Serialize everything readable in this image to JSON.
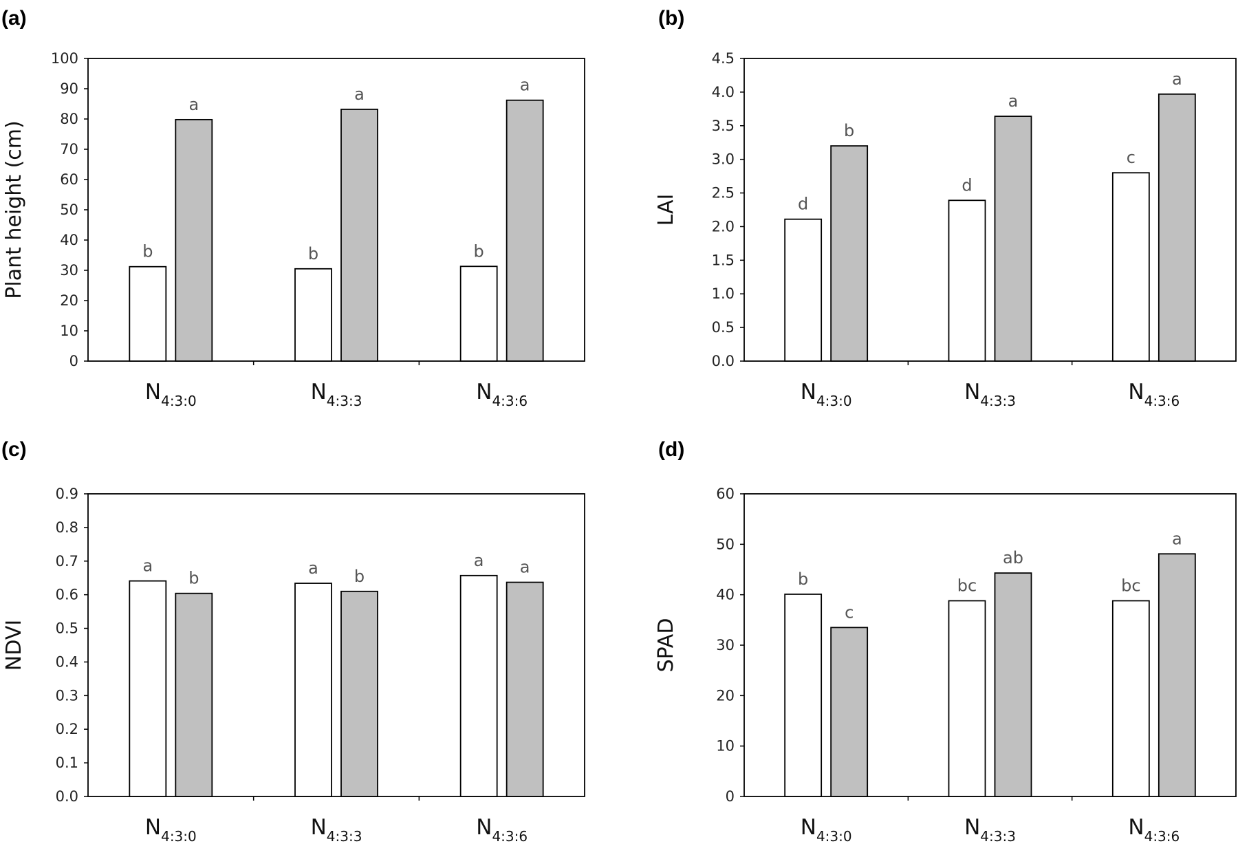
{
  "chart_data": [
    {
      "type": "bar",
      "panel": "(a)",
      "ylabel": "Plant height (cm)",
      "ylim": [
        0,
        100
      ],
      "yticks": [
        "0",
        "10",
        "20",
        "30",
        "40",
        "50",
        "60",
        "70",
        "80",
        "90",
        "100"
      ],
      "categories": [
        {
          "main": "N",
          "sub": "4:3:0"
        },
        {
          "main": "N",
          "sub": "4:3:3"
        },
        {
          "main": "N",
          "sub": "4:3:6"
        }
      ],
      "series": [
        {
          "color": "#ffffff",
          "values": [
            31.2,
            30.5,
            31.3
          ],
          "labels": [
            "b",
            "b",
            "b"
          ]
        },
        {
          "color": "#c0c0c0",
          "values": [
            79.8,
            83.2,
            86.2
          ],
          "labels": [
            "a",
            "a",
            "a"
          ]
        }
      ]
    },
    {
      "type": "bar",
      "panel": "(b)",
      "ylabel": "LAI",
      "ylim": [
        0,
        4.5
      ],
      "yticks": [
        "0.0",
        "0.5",
        "1.0",
        "1.5",
        "2.0",
        "2.5",
        "3.0",
        "3.5",
        "4.0",
        "4.5"
      ],
      "categories": [
        {
          "main": "N",
          "sub": "4:3:0"
        },
        {
          "main": "N",
          "sub": "4:3:3"
        },
        {
          "main": "N",
          "sub": "4:3:6"
        }
      ],
      "series": [
        {
          "color": "#ffffff",
          "values": [
            2.11,
            2.39,
            2.8
          ],
          "labels": [
            "d",
            "d",
            "c"
          ]
        },
        {
          "color": "#c0c0c0",
          "values": [
            3.2,
            3.64,
            3.97
          ],
          "labels": [
            "b",
            "a",
            "a"
          ]
        }
      ]
    },
    {
      "type": "bar",
      "panel": "(c)",
      "ylabel": "NDVI",
      "ylim": [
        0,
        0.9
      ],
      "yticks": [
        "0.0",
        "0.1",
        "0.2",
        "0.3",
        "0.4",
        "0.5",
        "0.6",
        "0.7",
        "0.8",
        "0.9"
      ],
      "categories": [
        {
          "main": "N",
          "sub": "4:3:0"
        },
        {
          "main": "N",
          "sub": "4:3:3"
        },
        {
          "main": "N",
          "sub": "4:3:6"
        }
      ],
      "series": [
        {
          "color": "#ffffff",
          "values": [
            0.641,
            0.634,
            0.657
          ],
          "labels": [
            "a",
            "a",
            "a"
          ]
        },
        {
          "color": "#c0c0c0",
          "values": [
            0.604,
            0.61,
            0.637
          ],
          "labels": [
            "b",
            "b",
            "a"
          ]
        }
      ]
    },
    {
      "type": "bar",
      "panel": "(d)",
      "ylabel": "SPAD",
      "ylim": [
        0,
        60
      ],
      "yticks": [
        "0",
        "10",
        "20",
        "30",
        "40",
        "50",
        "60"
      ],
      "categories": [
        {
          "main": "N",
          "sub": "4:3:0"
        },
        {
          "main": "N",
          "sub": "4:3:3"
        },
        {
          "main": "N",
          "sub": "4:3:6"
        }
      ],
      "series": [
        {
          "color": "#ffffff",
          "values": [
            40.1,
            38.8,
            38.8
          ],
          "labels": [
            "b",
            "bc",
            "bc"
          ]
        },
        {
          "color": "#c0c0c0",
          "values": [
            33.5,
            44.3,
            48.1
          ],
          "labels": [
            "c",
            "ab",
            "a"
          ]
        }
      ]
    }
  ]
}
